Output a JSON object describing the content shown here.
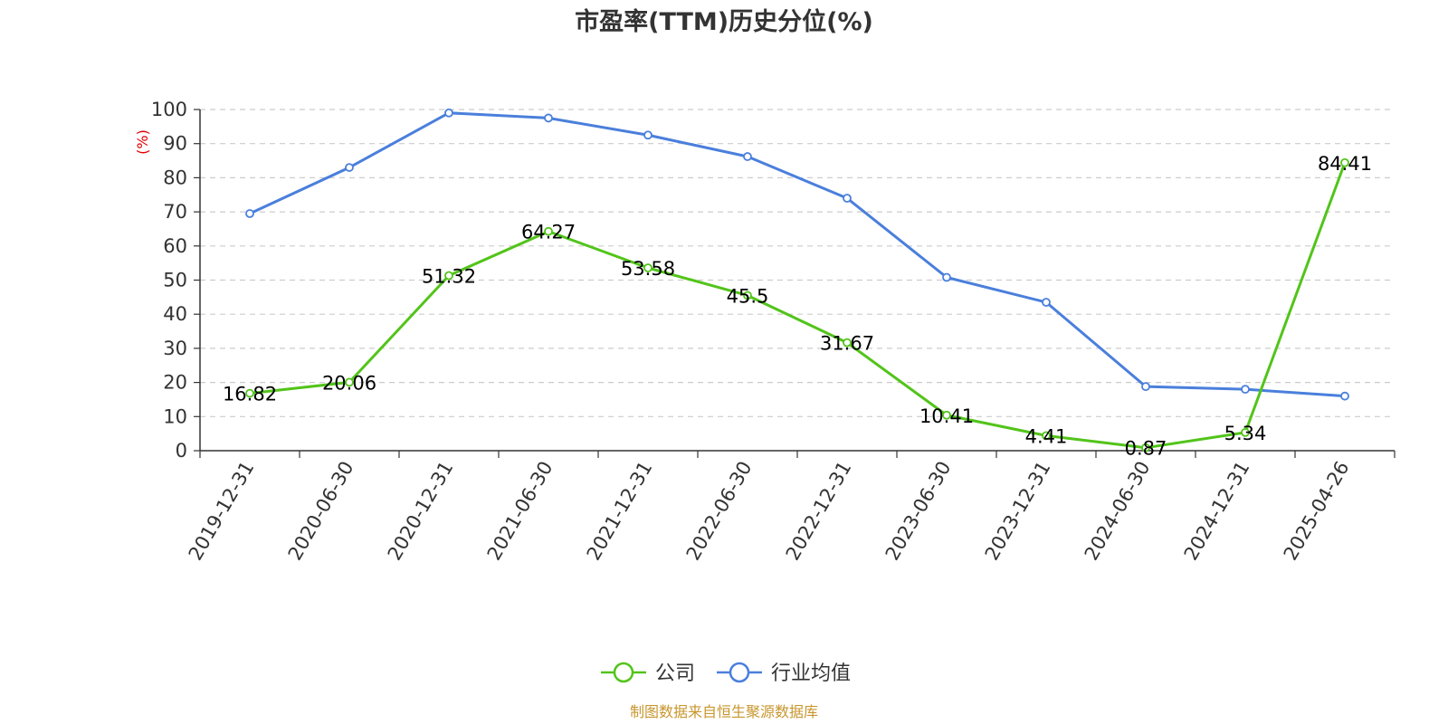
{
  "chart_data": {
    "type": "line",
    "title": "市盈率(TTM)历史分位(%)",
    "ylabel": "(%)",
    "xlabel": "",
    "ylim": [
      0,
      100
    ],
    "yticks": [
      0,
      10,
      20,
      30,
      40,
      50,
      60,
      70,
      80,
      90,
      100
    ],
    "categories": [
      "2019-12-31",
      "2020-06-30",
      "2020-12-31",
      "2021-06-30",
      "2021-12-31",
      "2022-06-30",
      "2022-12-31",
      "2023-06-30",
      "2023-12-31",
      "2024-06-30",
      "2024-12-31",
      "2025-04-26"
    ],
    "grid": "horizontal-dashed",
    "legend_position": "bottom-center",
    "series": [
      {
        "name": "公司",
        "color": "#52c41a",
        "values": [
          16.82,
          20.06,
          51.32,
          64.27,
          53.58,
          45.5,
          31.67,
          10.41,
          4.41,
          0.87,
          5.34,
          84.41
        ],
        "data_labels": [
          "16.82",
          "20.06",
          "51.32",
          "64.27",
          "53.58",
          "45.5",
          "31.67",
          "10.41",
          "4.41",
          "0.87",
          "5.34",
          "84.41"
        ]
      },
      {
        "name": "行业均值",
        "color": "#4a7fdc",
        "values": [
          69.5,
          83.0,
          99.0,
          97.5,
          92.5,
          86.2,
          74.0,
          50.8,
          43.5,
          18.8,
          18.0,
          16.0
        ]
      }
    ]
  },
  "colors": {
    "unit_label": "#e00000",
    "source_text": "#c8962e",
    "axis": "#333333",
    "grid": "#cccccc"
  },
  "source": "制图数据来自恒生聚源数据库"
}
